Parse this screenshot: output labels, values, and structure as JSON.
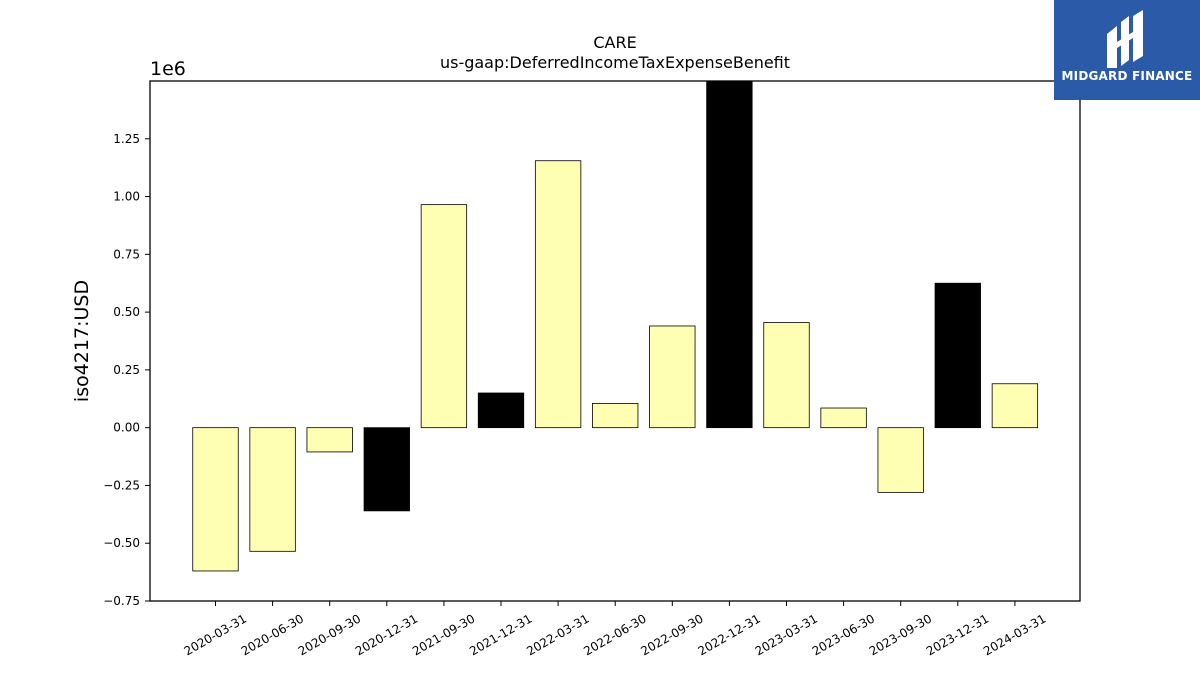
{
  "chart_data": {
    "type": "bar",
    "title": "CARE",
    "subtitle": "us-gaap:DeferredIncomeTaxExpenseBenefit",
    "ylabel": "iso4217:USD",
    "xlabel": "",
    "y_multiplier_label": "1e6",
    "ylim": [
      -0.75,
      1.5
    ],
    "y_ticks": [
      -0.75,
      -0.5,
      -0.25,
      0.0,
      0.25,
      0.5,
      0.75,
      1.0,
      1.25
    ],
    "y_tick_labels": [
      "−0.75",
      "−0.50",
      "−0.25",
      "0.00",
      "0.25",
      "0.50",
      "0.75",
      "1.00",
      "1.25"
    ],
    "categories": [
      "2020-03-31",
      "2020-06-30",
      "2020-09-30",
      "2020-12-31",
      "2021-09-30",
      "2021-12-31",
      "2022-03-31",
      "2022-06-30",
      "2022-09-30",
      "2022-12-31",
      "2023-03-31",
      "2023-06-30",
      "2023-09-30",
      "2023-12-31",
      "2024-03-31"
    ],
    "values": [
      -0.62,
      -0.535,
      -0.105,
      -0.36,
      0.965,
      0.15,
      1.155,
      0.105,
      0.44,
      1.51,
      0.455,
      0.085,
      -0.28,
      0.625,
      0.19
    ],
    "colors": [
      "#ffffb3",
      "#ffffb3",
      "#ffffb3",
      "#000000",
      "#ffffb3",
      "#000000",
      "#ffffb3",
      "#ffffb3",
      "#ffffb3",
      "#000000",
      "#ffffb3",
      "#ffffb3",
      "#ffffb3",
      "#000000",
      "#ffffb3"
    ],
    "grid": false,
    "legend": "none"
  },
  "logo": {
    "text": "MIDGARD FINANCE",
    "background": "#2a5aa8"
  }
}
